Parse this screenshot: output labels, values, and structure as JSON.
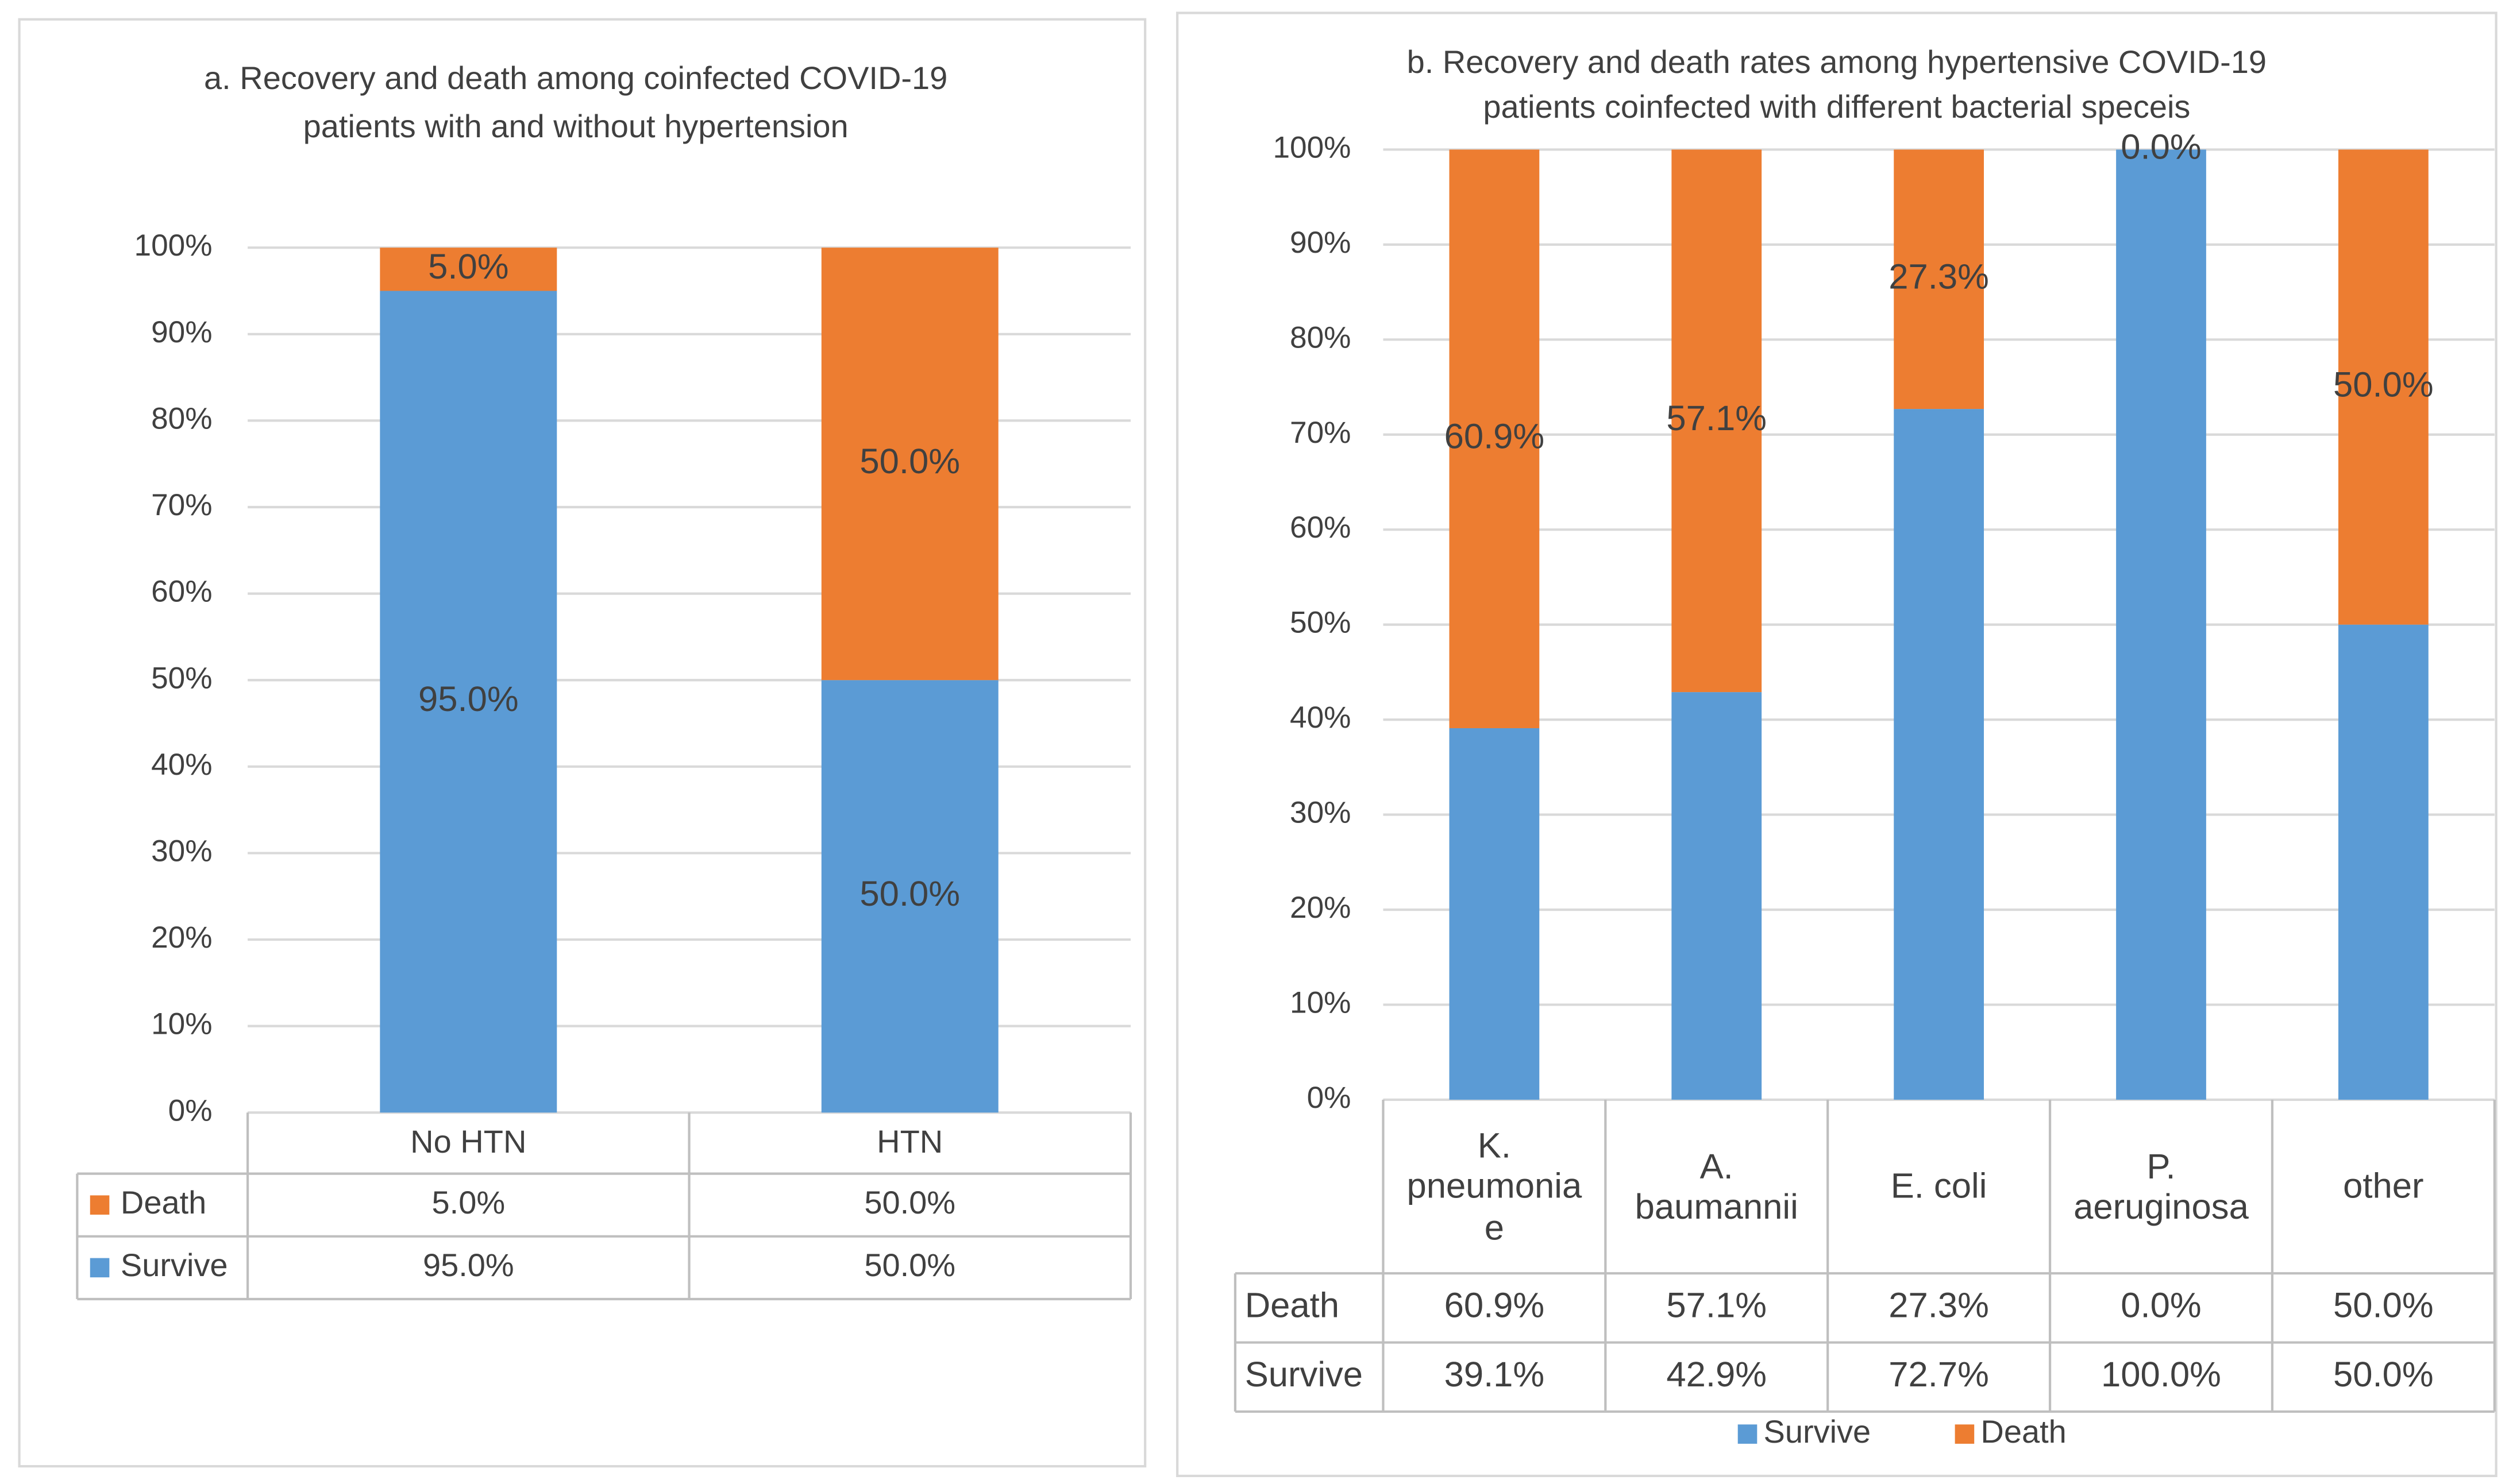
{
  "chart_data": [
    {
      "type": "bar",
      "stacked": true,
      "title": [
        "a. Recovery and death among coinfected COVID-19",
        "patients with and without hypertension"
      ],
      "categories": [
        "No HTN",
        "HTN"
      ],
      "series": [
        {
          "name": "Survive",
          "color": "#5b9bd5",
          "values": [
            95.0,
            50.0
          ],
          "value_labels": [
            "95.0%",
            "50.0%"
          ],
          "show_labels": true
        },
        {
          "name": "Death",
          "color": "#ed7d31",
          "values": [
            5.0,
            50.0
          ],
          "value_labels": [
            "5.0%",
            "50.0%"
          ],
          "show_labels": true
        }
      ],
      "ylim": [
        0,
        100
      ],
      "yticks": [
        {
          "value": 0,
          "label": "0%"
        },
        {
          "value": 10,
          "label": "10%"
        },
        {
          "value": 20,
          "label": "20%"
        },
        {
          "value": 30,
          "label": "30%"
        },
        {
          "value": 40,
          "label": "40%"
        },
        {
          "value": 50,
          "label": "50%"
        },
        {
          "value": 60,
          "label": "60%"
        },
        {
          "value": 70,
          "label": "70%"
        },
        {
          "value": 80,
          "label": "80%"
        },
        {
          "value": 90,
          "label": "90%"
        },
        {
          "value": 100,
          "label": "100%"
        }
      ],
      "grid": true,
      "data_table": true,
      "legend": "table"
    },
    {
      "type": "bar",
      "stacked": true,
      "title": [
        "b. Recovery and death rates among hypertensive COVID-19",
        "patients coinfected with different bacterial speceis"
      ],
      "categories": [
        "K. pneumoniae",
        "A. baumannii",
        "E. coli",
        "P. aeruginosa",
        "other"
      ],
      "series": [
        {
          "name": "Survive",
          "color": "#5b9bd5",
          "values": [
            39.1,
            42.9,
            72.7,
            100.0,
            50.0
          ],
          "value_labels": [
            "39.1%",
            "42.9%",
            "72.7%",
            "100.0%",
            "50.0%"
          ],
          "show_labels": false
        },
        {
          "name": "Death",
          "color": "#ed7d31",
          "values": [
            60.9,
            57.1,
            27.3,
            0.0,
            50.0
          ],
          "value_labels": [
            "60.9%",
            "57.1%",
            "27.3%",
            "0.0%",
            "50.0%"
          ],
          "show_labels": true
        }
      ],
      "ylim": [
        0,
        100
      ],
      "yticks": [
        {
          "value": 0,
          "label": "0%"
        },
        {
          "value": 10,
          "label": "10%"
        },
        {
          "value": 20,
          "label": "20%"
        },
        {
          "value": 30,
          "label": "30%"
        },
        {
          "value": 40,
          "label": "40%"
        },
        {
          "value": 50,
          "label": "50%"
        },
        {
          "value": 60,
          "label": "60%"
        },
        {
          "value": 70,
          "label": "70%"
        },
        {
          "value": 80,
          "label": "80%"
        },
        {
          "value": 90,
          "label": "90%"
        },
        {
          "value": 100,
          "label": "100%"
        }
      ],
      "grid": true,
      "data_table": true,
      "legend": "bottom"
    }
  ]
}
